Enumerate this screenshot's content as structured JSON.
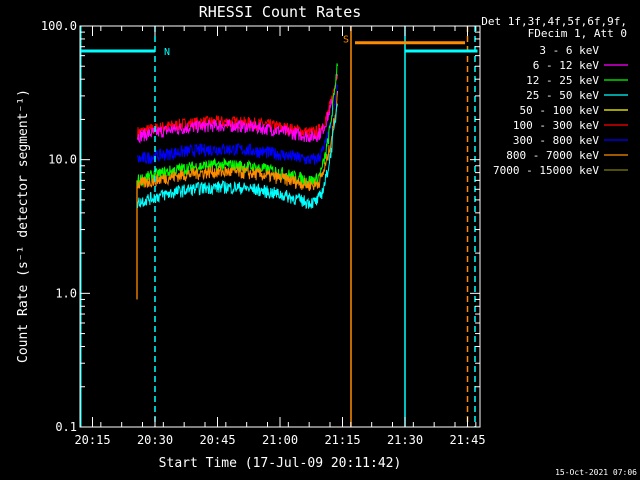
{
  "chart_data": {
    "type": "line",
    "title": "RHESSI Count Rates",
    "xlabel": "Start Time (17-Jul-09 20:11:42)",
    "ylabel": "Count Rate (s⁻¹ detector segment⁻¹)",
    "yscale": "log",
    "ylim": [
      0.1,
      100.0
    ],
    "yticks": [
      "100.0",
      "10.0",
      "1.0",
      "0.1"
    ],
    "xlim_minutes": [
      20.2,
      21.8
    ],
    "xtick_labels": [
      "20:15",
      "20:30",
      "20:45",
      "21:00",
      "21:15",
      "21:30",
      "21:45"
    ],
    "xtick_values": [
      20.25,
      20.5,
      20.75,
      21.0,
      21.25,
      21.5,
      21.75
    ],
    "legend": {
      "placement": "top-right",
      "header": [
        "Det 1f,3f,4f,5f,6f,9f,",
        "FDecim 1, Att 0"
      ],
      "entries": [
        {
          "label": "3 - 6 keV",
          "color": "#000000"
        },
        {
          "label": "6 - 12 keV",
          "color": "#ff00ff"
        },
        {
          "label": "12 - 25 keV",
          "color": "#00ff00"
        },
        {
          "label": "25 - 50 keV",
          "color": "#00ffff"
        },
        {
          "label": "50 - 100 keV",
          "color": "#ffff00"
        },
        {
          "label": "100 - 300 keV",
          "color": "#ff0000"
        },
        {
          "label": "300 - 800 keV",
          "color": "#0000ff"
        },
        {
          "label": "800 - 7000 keV",
          "color": "#ff8c00"
        },
        {
          "label": "7000 - 15000 keV",
          "color": "#808000"
        }
      ]
    },
    "series": [
      {
        "color": "#ff0000",
        "start": 20.43,
        "end": 21.23,
        "base": 16,
        "hump": 1.2,
        "peak": 45
      },
      {
        "color": "#ff00ff",
        "start": 20.43,
        "end": 21.23,
        "base": 15,
        "hump": 1.2,
        "peak": 42
      },
      {
        "color": "#000000",
        "start": 20.43,
        "end": 21.23,
        "base": 12,
        "hump": 1.2,
        "peak": 40
      },
      {
        "color": "#0000ff",
        "start": 20.43,
        "end": 21.23,
        "base": 10,
        "hump": 1.2,
        "peak": 35
      },
      {
        "color": "#00ff00",
        "start": 20.43,
        "end": 21.23,
        "base": 7,
        "hump": 1.3,
        "peak": 55
      },
      {
        "color": "#ff8c00",
        "start": 20.43,
        "end": 21.23,
        "base": 6.5,
        "hump": 1.25,
        "peak": 30
      },
      {
        "color": "#00ffff",
        "start": 20.43,
        "end": 21.23,
        "base": 4.8,
        "hump": 1.3,
        "peak": 28
      }
    ],
    "annotations": [
      {
        "label": "N",
        "color": "#00ffff",
        "x_start": 20.2,
        "x_end": 20.5,
        "y": 65
      },
      {
        "label": "S",
        "color": "#ff8c00",
        "x_start": 21.3,
        "x_end": 21.74,
        "y": 75
      }
    ],
    "footer_date": "15-Oct-2021 07:06"
  }
}
